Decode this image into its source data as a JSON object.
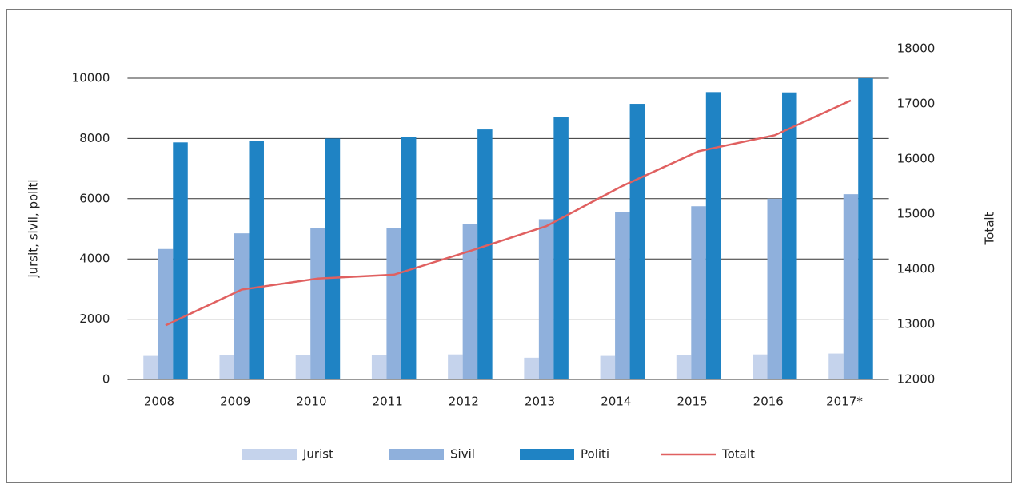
{
  "chart_data": {
    "type": "bar",
    "categories": [
      "2008",
      "2009",
      "2010",
      "2011",
      "2012",
      "2013",
      "2014",
      "2015",
      "2016",
      "2017*"
    ],
    "ylabel": "jursit, sivil, politi",
    "y2label": "Totalt",
    "ylim": [
      0,
      10000
    ],
    "yticks": [
      0,
      2000,
      4000,
      6000,
      8000,
      10000
    ],
    "y2lim": [
      12000,
      18000
    ],
    "y2ticks": [
      12000,
      13000,
      14000,
      15000,
      16000,
      17000,
      18000
    ],
    "grid": true,
    "legend": "bottom",
    "series": [
      {
        "name": "Jurist",
        "color": "#c5d3ec",
        "values": [
          780,
          800,
          800,
          800,
          830,
          720,
          780,
          820,
          830,
          860
        ]
      },
      {
        "name": "Sivil",
        "color": "#8fb0dc",
        "values": [
          4330,
          4850,
          5020,
          5020,
          5150,
          5320,
          5560,
          5750,
          6000,
          6150
        ]
      },
      {
        "name": "Politi",
        "color": "#1f83c4",
        "values": [
          7870,
          7930,
          8000,
          8060,
          8300,
          8700,
          9150,
          9540,
          9530,
          10000
        ]
      },
      {
        "name": "Totalt",
        "color": "#e06060",
        "type": "line",
        "axis": "y2",
        "values": [
          12980,
          13630,
          13830,
          13900,
          14330,
          14780,
          15510,
          16140,
          16430,
          17060
        ]
      }
    ]
  }
}
